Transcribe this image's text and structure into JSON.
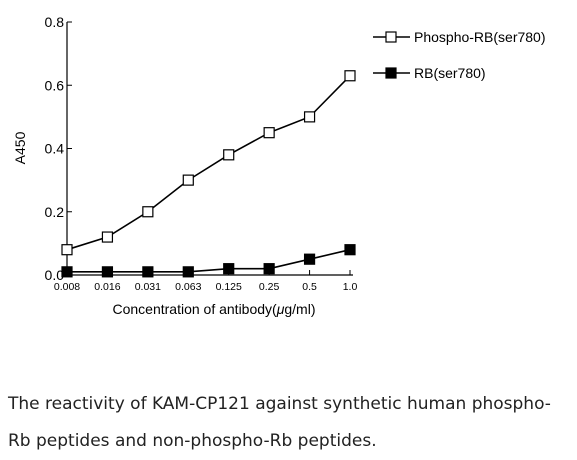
{
  "chart_data": {
    "type": "line",
    "categories": [
      "0.008",
      "0.016",
      "0.031",
      "0.063",
      "0.125",
      "0.25",
      "0.5",
      "1.0"
    ],
    "series": [
      {
        "name": "Phospho-RB(ser780)",
        "marker": "open-square",
        "color": "#000000",
        "values": [
          0.08,
          0.12,
          0.2,
          0.3,
          0.38,
          0.45,
          0.5,
          0.63
        ]
      },
      {
        "name": "RB(ser780)",
        "marker": "filled-square",
        "color": "#000000",
        "values": [
          0.01,
          0.01,
          0.01,
          0.01,
          0.02,
          0.02,
          0.05,
          0.08
        ]
      }
    ],
    "xlabel_prefix": "Concentration of antibody(",
    "xlabel_mu": "μ",
    "xlabel_suffix": "g/ml)",
    "ylabel": "A450",
    "ylim": [
      0,
      0.8
    ],
    "yticks": [
      "0.0",
      "0.2",
      "0.4",
      "0.6",
      "0.8"
    ],
    "ytick_values": [
      0,
      0.2,
      0.4,
      0.6,
      0.8
    ],
    "grid": false,
    "legend_position": "top-right"
  },
  "caption": "The reactivity of KAM-CP121 against synthetic human phospho-Rb peptides and non-phospho-Rb peptides."
}
